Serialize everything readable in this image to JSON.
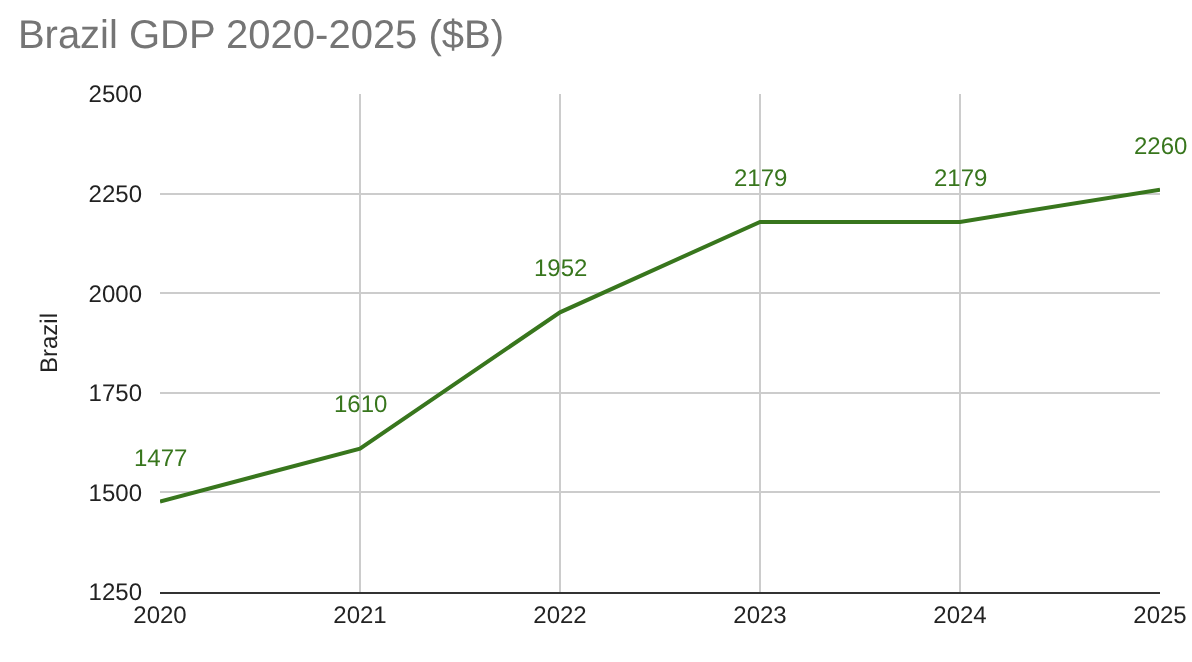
{
  "chart_data": {
    "type": "line",
    "title": "Brazil GDP 2020-2025 ($B)",
    "ylabel": "Brazil",
    "x": [
      2020,
      2021,
      2022,
      2023,
      2024,
      2025
    ],
    "series": [
      {
        "color": "#38761d",
        "values": [
          1477,
          1610,
          1952,
          2179,
          2179,
          2260
        ]
      }
    ],
    "xlim": [
      2020,
      2025
    ],
    "xticks": [
      2020,
      2021,
      2022,
      2023,
      2024,
      2025
    ],
    "ylim": [
      1250,
      2500
    ],
    "yticks": [
      1250,
      1500,
      1750,
      2000,
      2250,
      2500
    ],
    "grid": true,
    "data_labels": true,
    "marker": "none",
    "line_style": "solid"
  }
}
